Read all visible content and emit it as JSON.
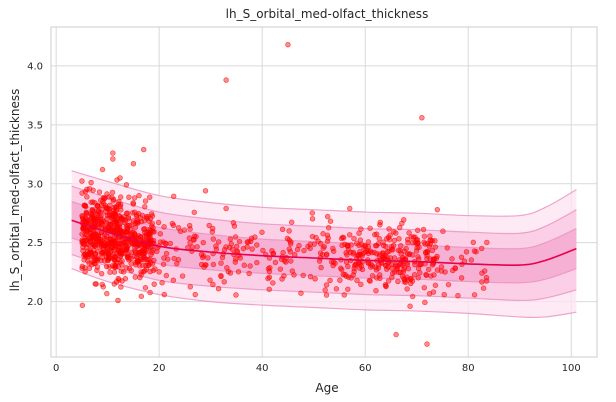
{
  "chart_data": {
    "type": "scatter",
    "title": "lh_S_orbital_med-olfact_thickness",
    "xlabel": "Age",
    "ylabel": "lh_S_orbital_med-olfact_thickness",
    "xlim": [
      -1,
      105
    ],
    "ylim": [
      1.53,
      4.33
    ],
    "xticks": [
      0,
      20,
      40,
      60,
      80,
      100
    ],
    "yticks": [
      2.0,
      2.5,
      3.0,
      3.5,
      4.0
    ],
    "grid": true,
    "colors": {
      "points": "#ff0000",
      "curve": "#e8004a",
      "band_inner": "#f080b8",
      "band_outer": "#f8b8d8",
      "band_edge": "#e890c0",
      "grid": "#d9d9d9",
      "frame": "#cccccc"
    },
    "curve": {
      "x": [
        3,
        10,
        20,
        30,
        40,
        50,
        60,
        70,
        80,
        90,
        95,
        101
      ],
      "y": [
        2.69,
        2.59,
        2.47,
        2.42,
        2.39,
        2.37,
        2.35,
        2.34,
        2.32,
        2.31,
        2.35,
        2.45
      ]
    },
    "centile_bands": [
      {
        "name": "outer",
        "x": [
          3,
          10,
          20,
          30,
          40,
          50,
          60,
          70,
          80,
          90,
          95,
          101
        ],
        "upper": [
          3.11,
          3.02,
          2.9,
          2.84,
          2.8,
          2.78,
          2.76,
          2.75,
          2.73,
          2.73,
          2.8,
          2.95
        ],
        "lower": [
          2.28,
          2.17,
          2.06,
          2.0,
          1.97,
          1.95,
          1.93,
          1.92,
          1.9,
          1.87,
          1.87,
          1.91
        ]
      },
      {
        "name": "mid",
        "x": [
          3,
          10,
          20,
          30,
          40,
          50,
          60,
          70,
          80,
          90,
          95,
          101
        ],
        "upper": [
          2.98,
          2.88,
          2.76,
          2.7,
          2.66,
          2.64,
          2.62,
          2.61,
          2.59,
          2.58,
          2.64,
          2.78
        ],
        "lower": [
          2.4,
          2.3,
          2.18,
          2.13,
          2.1,
          2.08,
          2.06,
          2.05,
          2.03,
          2.01,
          2.03,
          2.1
        ]
      },
      {
        "name": "inner",
        "x": [
          3,
          10,
          20,
          30,
          40,
          50,
          60,
          70,
          80,
          90,
          95,
          101
        ],
        "upper": [
          2.85,
          2.75,
          2.63,
          2.57,
          2.53,
          2.51,
          2.49,
          2.48,
          2.46,
          2.45,
          2.5,
          2.62
        ],
        "lower": [
          2.54,
          2.44,
          2.32,
          2.27,
          2.24,
          2.22,
          2.2,
          2.19,
          2.17,
          2.16,
          2.19,
          2.28
        ]
      }
    ],
    "outliers": [
      {
        "x": 45,
        "y": 4.18
      },
      {
        "x": 33,
        "y": 3.88
      },
      {
        "x": 71,
        "y": 3.56
      },
      {
        "x": 17,
        "y": 3.29
      },
      {
        "x": 11,
        "y": 3.26
      },
      {
        "x": 11,
        "y": 3.21
      },
      {
        "x": 15,
        "y": 3.17
      },
      {
        "x": 9,
        "y": 3.12
      },
      {
        "x": 29,
        "y": 2.94
      },
      {
        "x": 33,
        "y": 2.79
      },
      {
        "x": 57,
        "y": 2.79
      },
      {
        "x": 74,
        "y": 2.78
      },
      {
        "x": 66,
        "y": 1.72
      },
      {
        "x": 72,
        "y": 1.64
      },
      {
        "x": 12,
        "y": 2.01
      },
      {
        "x": 21,
        "y": 2.06
      },
      {
        "x": 27,
        "y": 2.06
      },
      {
        "x": 78,
        "y": 2.05
      }
    ],
    "point_clusters": [
      {
        "x_range": [
          5,
          13
        ],
        "y_mean": 2.56,
        "y_sd": 0.17,
        "count": 420
      },
      {
        "x_range": [
          13,
          19
        ],
        "y_mean": 2.5,
        "y_sd": 0.16,
        "count": 220
      },
      {
        "x_range": [
          19,
          40
        ],
        "y_mean": 2.42,
        "y_sd": 0.15,
        "count": 110
      },
      {
        "x_range": [
          40,
          56
        ],
        "y_mean": 2.37,
        "y_sd": 0.15,
        "count": 90
      },
      {
        "x_range": [
          56,
          74
        ],
        "y_mean": 2.36,
        "y_sd": 0.14,
        "count": 260
      },
      {
        "x_range": [
          74,
          84
        ],
        "y_mean": 2.32,
        "y_sd": 0.13,
        "count": 30
      }
    ]
  }
}
